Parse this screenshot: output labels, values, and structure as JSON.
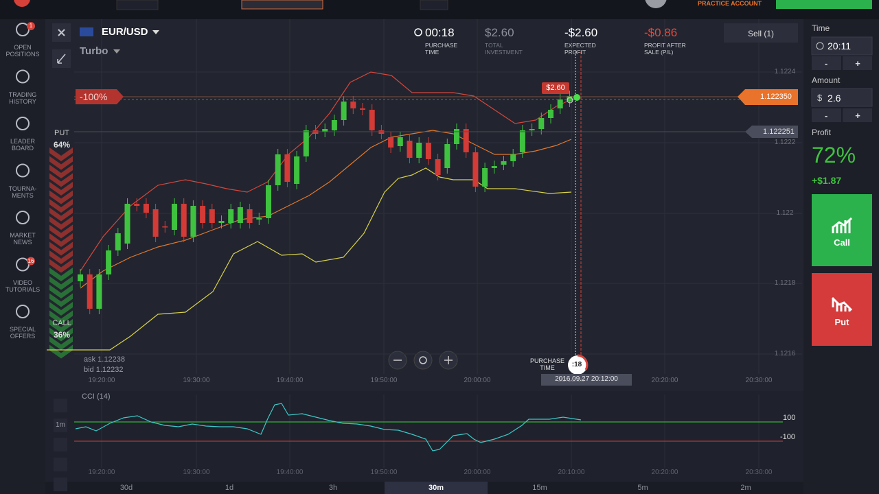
{
  "top_bar": {
    "account": "PRACTICE ACCOUNT"
  },
  "sidebar": [
    {
      "lines": [
        "OPEN",
        "POSITIONS"
      ],
      "badge": "1"
    },
    {
      "lines": [
        "TRADING",
        "HISTORY"
      ]
    },
    {
      "lines": [
        "LEADER",
        "BOARD"
      ]
    },
    {
      "lines": [
        "TOURNA-",
        "MENTS"
      ]
    },
    {
      "lines": [
        "MARKET",
        "NEWS"
      ]
    },
    {
      "lines": [
        "VIDEO",
        "TUTORIALS"
      ],
      "badge": "16"
    },
    {
      "lines": [
        "SPECIAL",
        "OFFERS"
      ]
    }
  ],
  "asset": {
    "name": "EUR/USD",
    "mode": "Turbo"
  },
  "stats": [
    {
      "value": "00:18",
      "label": [
        "PURCHASE",
        "TIME"
      ]
    },
    {
      "value": "$2.60",
      "label": [
        "TOTAL",
        "INVESTMENT"
      ]
    },
    {
      "value": "-$2.60",
      "label": [
        "EXPECTED",
        "PROFIT"
      ]
    },
    {
      "value": "-$0.86",
      "label": [
        "PROFIT AFTER",
        "SALE (P/L)"
      ]
    }
  ],
  "sell_button": "Sell (1)",
  "sentiment": {
    "put_label": "PUT",
    "put_pct": "64%",
    "call_label": "CALL",
    "call_pct": "36%"
  },
  "deal": {
    "loss_badge": "-100%",
    "amount": "$2.60",
    "level": "1.122350",
    "current": "1.122251"
  },
  "quote": {
    "ask": "ask 1.12238",
    "bid": "bid 1.12232"
  },
  "price_ticks": [
    "1.1224",
    "1.1222",
    "1.122",
    "1.1218",
    "1.1216"
  ],
  "time_ticks": [
    "19:20:00",
    "19:30:00",
    "19:40:00",
    "19:50:00",
    "20:00:00",
    "20:10:00",
    "20:20:00",
    "20:30:00"
  ],
  "expiry": {
    "label": [
      "PURCHASE",
      "TIME"
    ],
    "countdown": ":18",
    "datetime": "2016.09.27 20:12:00"
  },
  "indicator": {
    "name": "CCI (14)",
    "interval": "1m",
    "upper": "100",
    "lower": "-100"
  },
  "timeframes": [
    "30d",
    "1d",
    "3h",
    "30m",
    "15m",
    "5m",
    "2m"
  ],
  "panel": {
    "time_label": "Time",
    "time": "20:11",
    "amount_label": "Amount",
    "currency": "$",
    "amount": "2.6",
    "minus": "-",
    "plus": "+",
    "profit_label": "Profit",
    "profit_pct": "72%",
    "profit_value": "+$1.87",
    "call": "Call",
    "put": "Put"
  }
}
